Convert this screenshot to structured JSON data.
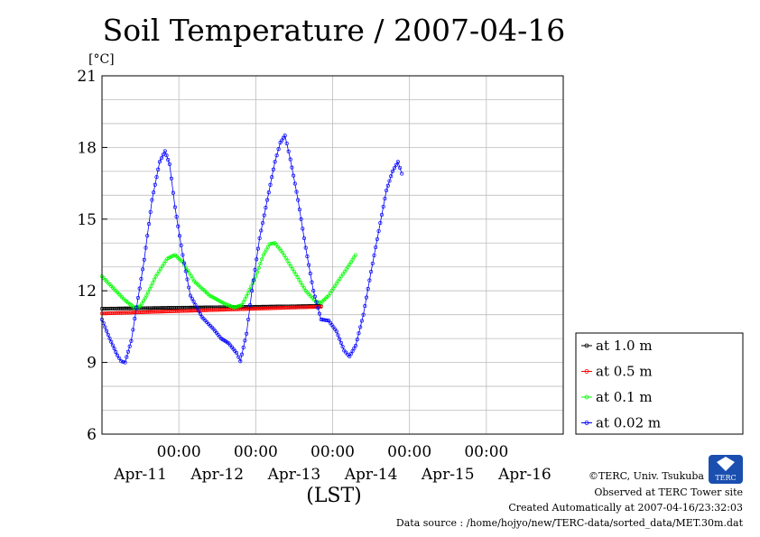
{
  "chart_data": {
    "type": "line",
    "title": "Soil Temperature / 2007-04-16",
    "ylabel": "[°C]",
    "xlabel": "(LST)",
    "ylim": [
      6,
      21
    ],
    "yticks": [
      6,
      9,
      12,
      15,
      18,
      21
    ],
    "xlim": [
      0,
      6
    ],
    "x_units": "days from left edge of plot (Apr-10 ~00:00 LST)",
    "xtick_labels": [
      {
        "x": 1,
        "time": "00:00",
        "date": "Apr-11"
      },
      {
        "x": 2,
        "time": "00:00",
        "date": "Apr-12"
      },
      {
        "x": 3,
        "time": "00:00",
        "date": "Apr-13"
      },
      {
        "x": 4,
        "time": "00:00",
        "date": "Apr-14"
      },
      {
        "x": 5,
        "time": "00:00",
        "date": "Apr-15"
      },
      {
        "x": 6,
        "time": "",
        "date": "Apr-16"
      }
    ],
    "grid": true,
    "legend_position": "right-bottom-outside",
    "series": [
      {
        "name": "at 1.0 m",
        "color": "#000000",
        "points": [
          [
            0.0,
            11.25
          ],
          [
            0.5,
            11.27
          ],
          [
            1.0,
            11.29
          ],
          [
            1.5,
            11.31
          ],
          [
            2.0,
            11.33
          ],
          [
            2.5,
            11.35
          ],
          [
            2.85,
            11.37
          ]
        ]
      },
      {
        "name": "at 0.5 m",
        "color": "#ff0000",
        "points": [
          [
            0.0,
            11.05
          ],
          [
            0.5,
            11.1
          ],
          [
            1.0,
            11.15
          ],
          [
            1.5,
            11.2
          ],
          [
            2.0,
            11.25
          ],
          [
            2.5,
            11.3
          ],
          [
            2.85,
            11.33
          ]
        ]
      },
      {
        "name": "at 0.1 m",
        "color": "#00ff00",
        "points": [
          [
            0.0,
            12.6
          ],
          [
            0.12,
            12.2
          ],
          [
            0.3,
            11.6
          ],
          [
            0.42,
            11.3
          ],
          [
            0.5,
            11.35
          ],
          [
            0.58,
            11.8
          ],
          [
            0.7,
            12.6
          ],
          [
            0.85,
            13.35
          ],
          [
            0.95,
            13.5
          ],
          [
            1.05,
            13.2
          ],
          [
            1.2,
            12.4
          ],
          [
            1.4,
            11.8
          ],
          [
            1.6,
            11.45
          ],
          [
            1.72,
            11.3
          ],
          [
            1.82,
            11.4
          ],
          [
            1.9,
            11.9
          ],
          [
            2.0,
            12.6
          ],
          [
            2.1,
            13.5
          ],
          [
            2.18,
            13.95
          ],
          [
            2.25,
            14.0
          ],
          [
            2.35,
            13.6
          ],
          [
            2.5,
            12.8
          ],
          [
            2.65,
            12.0
          ],
          [
            2.78,
            11.55
          ],
          [
            2.85,
            11.5
          ],
          [
            2.95,
            11.8
          ],
          [
            3.05,
            12.3
          ],
          [
            3.2,
            13.0
          ],
          [
            3.3,
            13.5
          ]
        ]
      },
      {
        "name": "at 0.02 m",
        "color": "#0000ff",
        "points": [
          [
            0.0,
            10.8
          ],
          [
            0.1,
            10.0
          ],
          [
            0.2,
            9.3
          ],
          [
            0.25,
            9.05
          ],
          [
            0.3,
            9.0
          ],
          [
            0.38,
            9.9
          ],
          [
            0.45,
            11.3
          ],
          [
            0.55,
            13.3
          ],
          [
            0.65,
            15.8
          ],
          [
            0.75,
            17.4
          ],
          [
            0.82,
            17.85
          ],
          [
            0.88,
            17.3
          ],
          [
            0.95,
            15.5
          ],
          [
            1.05,
            13.5
          ],
          [
            1.15,
            11.8
          ],
          [
            1.3,
            10.9
          ],
          [
            1.45,
            10.4
          ],
          [
            1.55,
            10.0
          ],
          [
            1.65,
            9.8
          ],
          [
            1.75,
            9.4
          ],
          [
            1.8,
            9.05
          ],
          [
            1.88,
            10.2
          ],
          [
            1.95,
            12.0
          ],
          [
            2.05,
            14.2
          ],
          [
            2.15,
            15.8
          ],
          [
            2.25,
            17.4
          ],
          [
            2.32,
            18.2
          ],
          [
            2.38,
            18.5
          ],
          [
            2.45,
            17.5
          ],
          [
            2.55,
            15.8
          ],
          [
            2.65,
            13.8
          ],
          [
            2.75,
            12.0
          ],
          [
            2.85,
            10.8
          ],
          [
            2.95,
            10.75
          ],
          [
            3.05,
            10.3
          ],
          [
            3.15,
            9.5
          ],
          [
            3.22,
            9.25
          ],
          [
            3.3,
            9.7
          ],
          [
            3.4,
            11.0
          ],
          [
            3.5,
            12.8
          ],
          [
            3.6,
            14.5
          ],
          [
            3.7,
            16.2
          ],
          [
            3.78,
            17.0
          ],
          [
            3.85,
            17.4
          ],
          [
            3.9,
            16.9
          ]
        ]
      }
    ]
  },
  "footer": {
    "copyright": "©TERC, Univ. Tsukuba",
    "observed": "Observed at TERC Tower site",
    "created": "Created Automatically at 2007-04-16/23:32:03",
    "source": "Data source : /home/hojyo/new/TERC-data/sorted_data/MET.30m.dat",
    "logo_text": "TERC"
  }
}
